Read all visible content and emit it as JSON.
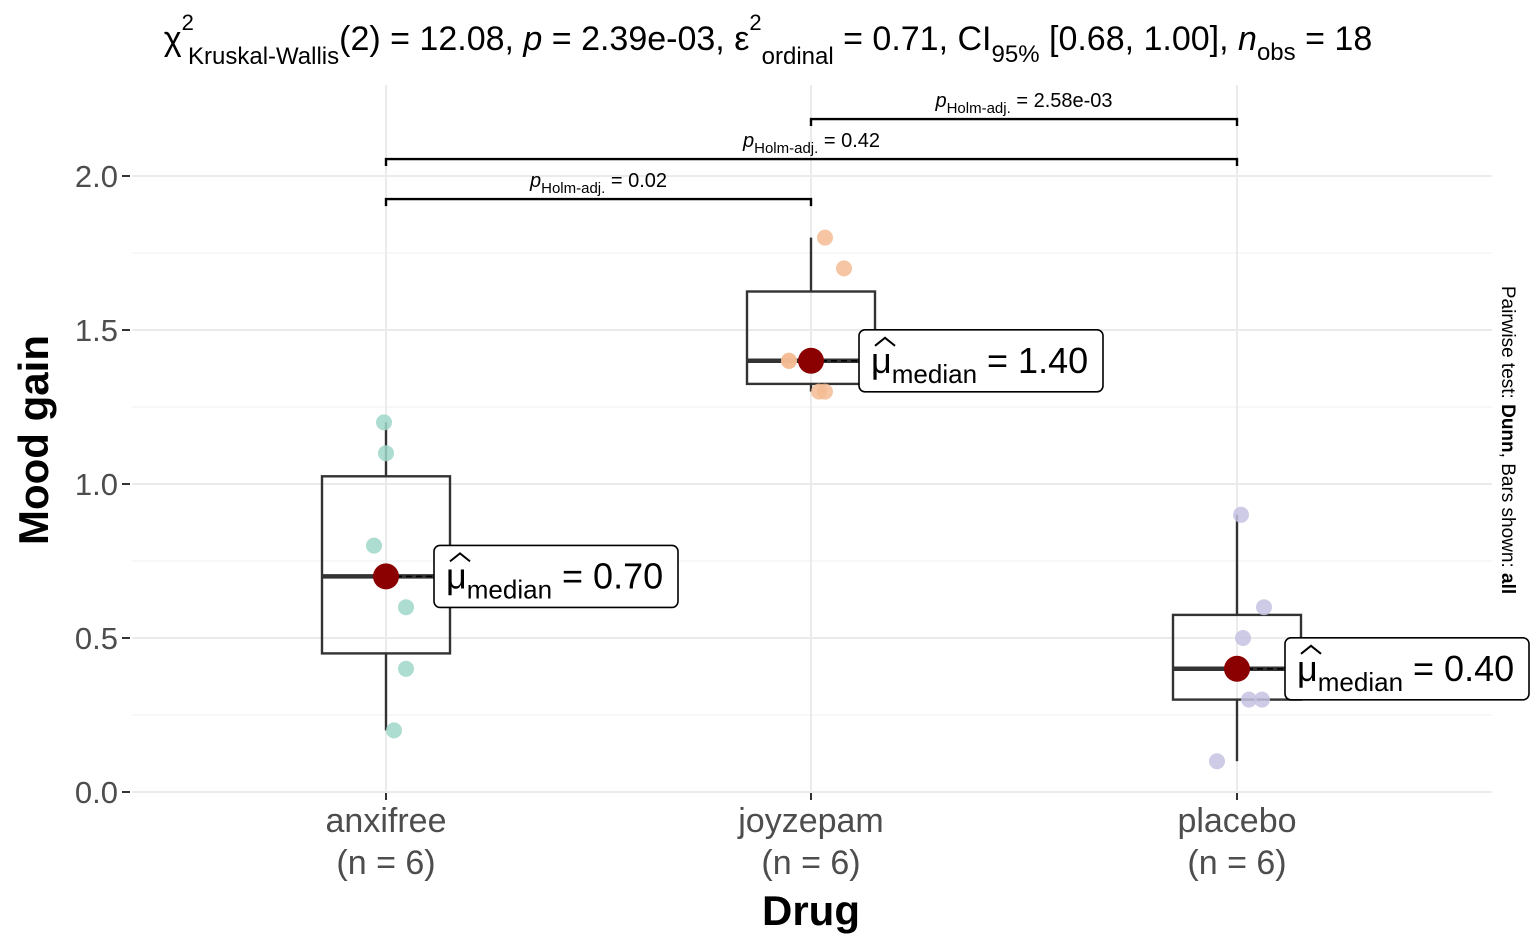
{
  "chart_data": {
    "type": "box",
    "title": {
      "stat_label": "χ",
      "stat_sup": "2",
      "stat_sub": "Kruskal-Wallis",
      "stat_value": "(2) = 12.08, ",
      "p_label": "p",
      "p_value": " = 2.39e-03, ",
      "effect_label": "ε",
      "effect_hat": "^",
      "effect_sup": "2",
      "effect_sub": "ordinal",
      "effect_value": " = 0.71, CI",
      "ci_sub": "95%",
      "ci_value": " [0.68, 1.00], ",
      "n_label": "n",
      "n_sub": "obs",
      "n_value": " = 18"
    },
    "xlabel": "Drug",
    "ylabel": "Mood gain",
    "ylim": [
      0,
      2.2
    ],
    "yticks": [
      0.0,
      0.5,
      1.0,
      1.5,
      2.0
    ],
    "ytick_labels": [
      "0.0",
      "0.5",
      "1.0",
      "1.5",
      "2.0"
    ],
    "grid": true,
    "categories": [
      "anxifree",
      "joyzepam",
      "placebo"
    ],
    "n_labels": [
      "(n = 6)",
      "(n = 6)",
      "(n = 6)"
    ],
    "groups": [
      {
        "name": "anxifree",
        "color": "#9fd6c8",
        "points": [
          0.2,
          0.4,
          0.6,
          0.8,
          1.1,
          1.2
        ],
        "q1": 0.45,
        "median": 0.7,
        "q3": 1.025,
        "whisker_low": 0.2,
        "whisker_high": 1.2,
        "median_label": "0.70"
      },
      {
        "name": "joyzepam",
        "color": "#f4bb93",
        "points": [
          1.3,
          1.3,
          1.4,
          1.4,
          1.7,
          1.8
        ],
        "q1": 1.325,
        "median": 1.4,
        "q3": 1.625,
        "whisker_low": 1.3,
        "whisker_high": 1.8,
        "median_label": "1.40"
      },
      {
        "name": "placebo",
        "color": "#c5c2e2",
        "points": [
          0.1,
          0.3,
          0.3,
          0.5,
          0.6,
          0.9
        ],
        "q1": 0.3,
        "median": 0.4,
        "q3": 0.575,
        "whisker_low": 0.1,
        "whisker_high": 0.9,
        "median_label": "0.40"
      }
    ],
    "median_point_color": "#8b0000",
    "median_label_prefix": "μ",
    "median_label_sub": "median",
    "median_label_eq": " = ",
    "pairwise": [
      {
        "from": 0,
        "to": 1,
        "y": 1.925,
        "p_prefix": "p",
        "p_sub": "Holm-adj.",
        "p_text": " = 0.02"
      },
      {
        "from": 0,
        "to": 2,
        "y": 2.055,
        "p_prefix": "p",
        "p_sub": "Holm-adj.",
        "p_text": " = 0.42"
      },
      {
        "from": 1,
        "to": 2,
        "y": 2.185,
        "p_prefix": "p",
        "p_sub": "Holm-adj.",
        "p_text": " = 2.58e-03"
      }
    ],
    "caption": {
      "prefix": "Pairwise test: ",
      "test": "Dunn",
      "middle": ", Bars shown: ",
      "bars": "all"
    }
  }
}
